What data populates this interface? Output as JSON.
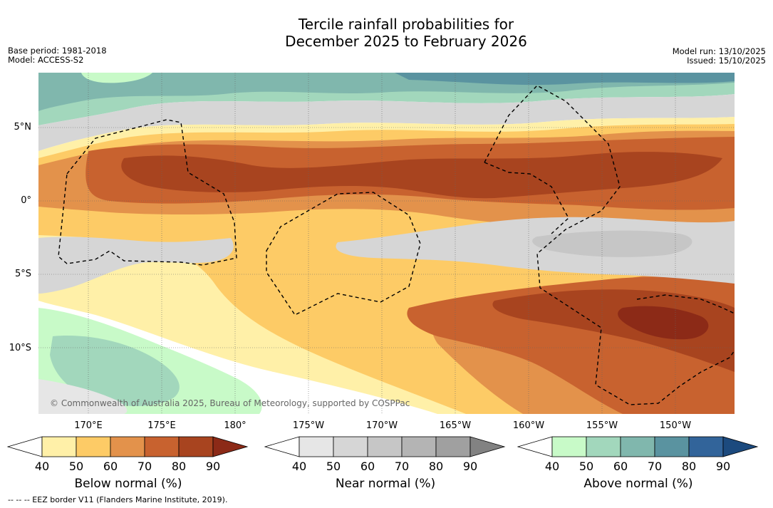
{
  "title_line1": "Tercile rainfall probabilities for",
  "title_line2": "December 2025 to February 2026",
  "meta_left": {
    "base_period": "Base period: 1981-2018",
    "model": "Model: ACCESS-S2"
  },
  "meta_right": {
    "model_run": "Model run: 13/10/2025",
    "issued": "Issued: 15/10/2025"
  },
  "lat_labels": [
    "5°N",
    "0°",
    "5°S",
    "10°S"
  ],
  "lon_labels": [
    "170°E",
    "175°E",
    "180°",
    "175°W",
    "170°W",
    "165°W",
    "160°W",
    "155°W",
    "150°W"
  ],
  "copyright": "© Commonwealth of Australia 2025, Bureau of Meteorology, supported by COSPPac",
  "colorbars": [
    {
      "title": "Below normal (%)",
      "ticks": [
        "40",
        "50",
        "60",
        "70",
        "80",
        "90"
      ],
      "colors": [
        "#ffffff",
        "#fff0a8",
        "#fdcb66",
        "#e3924b",
        "#c8622f",
        "#a8441f",
        "#8c2a17"
      ]
    },
    {
      "title": "Near normal (%)",
      "ticks": [
        "40",
        "50",
        "60",
        "70",
        "80",
        "90"
      ],
      "colors": [
        "#ffffff",
        "#e6e6e6",
        "#d6d6d6",
        "#c6c6c6",
        "#b4b4b4",
        "#a0a0a0",
        "#828282"
      ]
    },
    {
      "title": "Above normal (%)",
      "ticks": [
        "40",
        "50",
        "60",
        "70",
        "80",
        "90"
      ],
      "colors": [
        "#ffffff",
        "#c8fac8",
        "#a2d7bc",
        "#80b7ad",
        "#5a93a0",
        "#32649a",
        "#1c4a7e"
      ]
    }
  ],
  "footnote": "-- -- -- EEZ border V11 (Flanders Marine Institute, 2019)."
}
